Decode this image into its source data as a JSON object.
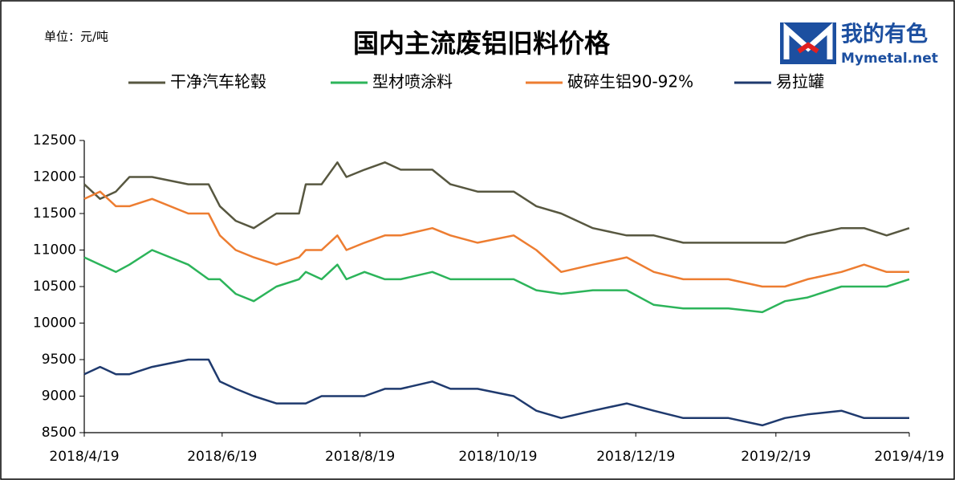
{
  "chart_data": {
    "type": "line",
    "title": "国内主流废铝旧料价格",
    "unit_label": "单位：元/吨",
    "logo": {
      "cn": "我的有色",
      "en": "Mymetal.net"
    },
    "x": [
      "2018/4/19",
      "2018/4/26",
      "2018/5/3",
      "2018/5/9",
      "2018/5/19",
      "2018/6/4",
      "2018/6/13",
      "2018/6/18",
      "2018/6/25",
      "2018/7/3",
      "2018/7/13",
      "2018/7/23",
      "2018/7/26",
      "2018/8/2",
      "2018/8/9",
      "2018/8/13",
      "2018/8/21",
      "2018/8/30",
      "2018/9/6",
      "2018/9/20",
      "2018/9/28",
      "2018/10/10",
      "2018/10/26",
      "2018/11/5",
      "2018/11/16",
      "2018/11/30",
      "2018/12/15",
      "2018/12/27",
      "2019/1/9",
      "2019/1/29",
      "2019/2/13",
      "2019/2/23",
      "2019/3/5",
      "2019/3/20",
      "2019/3/30",
      "2019/4/9",
      "2019/4/19"
    ],
    "series": [
      {
        "name": "干净汽车轮毂",
        "color": "#575740",
        "values": [
          11900,
          11700,
          11800,
          12000,
          12000,
          11900,
          11900,
          11600,
          11400,
          11300,
          11500,
          11500,
          11900,
          11900,
          12200,
          12000,
          12100,
          12200,
          12100,
          12100,
          11900,
          11800,
          11800,
          11600,
          11500,
          11300,
          11200,
          11200,
          11100,
          11100,
          11100,
          11100,
          11200,
          11300,
          11300,
          11200,
          11300
        ]
      },
      {
        "name": "型材喷涂料",
        "color": "#2cb45a",
        "values": [
          10900,
          10800,
          10700,
          10800,
          11000,
          10800,
          10600,
          10600,
          10400,
          10300,
          10500,
          10600,
          10700,
          10600,
          10800,
          10600,
          10700,
          10600,
          10600,
          10700,
          10600,
          10600,
          10600,
          10450,
          10400,
          10450,
          10450,
          10250,
          10200,
          10200,
          10150,
          10300,
          10350,
          10500,
          10500,
          10500,
          10600
        ]
      },
      {
        "name": "破碎生铝90-92%",
        "color": "#ed7d31",
        "values": [
          11700,
          11800,
          11600,
          11600,
          11700,
          11500,
          11500,
          11200,
          11000,
          10900,
          10800,
          10900,
          11000,
          11000,
          11200,
          11000,
          11100,
          11200,
          11200,
          11300,
          11200,
          11100,
          11200,
          11000,
          10700,
          10800,
          10900,
          10700,
          10600,
          10600,
          10500,
          10500,
          10600,
          10700,
          10800,
          10700,
          10700
        ]
      },
      {
        "name": "易拉罐",
        "color": "#1f3a6e",
        "values": [
          9300,
          9400,
          9300,
          9300,
          9400,
          9500,
          9500,
          9200,
          9100,
          9000,
          8900,
          8900,
          8900,
          9000,
          9000,
          9000,
          9000,
          9100,
          9100,
          9200,
          9100,
          9100,
          9000,
          8800,
          8700,
          8800,
          8900,
          8800,
          8700,
          8700,
          8600,
          8700,
          8750,
          8800,
          8700,
          8700,
          8700
        ]
      }
    ],
    "xlim": [
      "2018/4/19",
      "2019/4/19"
    ],
    "xticks": [
      "2018/4/19",
      "2018/6/19",
      "2018/8/19",
      "2018/10/19",
      "2018/12/19",
      "2019/2/19",
      "2019/4/19"
    ],
    "ylim": [
      8500,
      12500
    ],
    "yticks": [
      8500,
      9000,
      9500,
      10000,
      10500,
      11000,
      11500,
      12000,
      12500
    ]
  }
}
